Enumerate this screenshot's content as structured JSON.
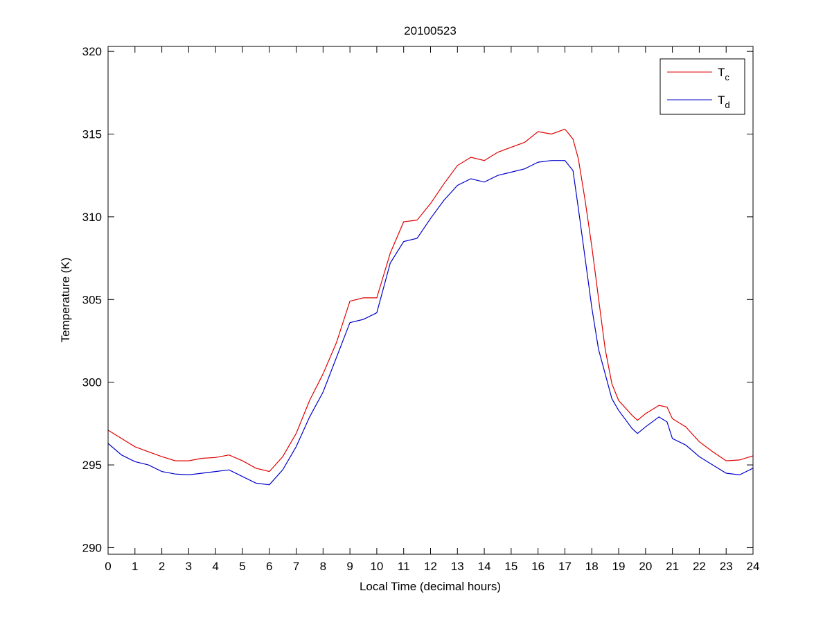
{
  "chart_data": {
    "type": "line",
    "title": "20100523",
    "xlabel": "Local Time (decimal hours)",
    "ylabel": "Temperature (K)",
    "xlim": [
      0,
      24
    ],
    "ylim": [
      289.6,
      320.3
    ],
    "xticks": [
      0,
      1,
      2,
      3,
      4,
      5,
      6,
      7,
      8,
      9,
      10,
      11,
      12,
      13,
      14,
      15,
      16,
      17,
      18,
      19,
      20,
      21,
      22,
      23,
      24
    ],
    "yticks": [
      290,
      295,
      300,
      305,
      310,
      315,
      320
    ],
    "grid": false,
    "legend_position": "top-right",
    "x": [
      0,
      0.5,
      1,
      1.5,
      2,
      2.5,
      3,
      3.5,
      4,
      4.5,
      5,
      5.5,
      6,
      6.5,
      7,
      7.5,
      8,
      8.5,
      9,
      9.5,
      10,
      10.5,
      11,
      11.5,
      12,
      12.5,
      13,
      13.5,
      14,
      14.5,
      15,
      15.5,
      16,
      16.5,
      17,
      17.3,
      17.5,
      17.75,
      18,
      18.25,
      18.5,
      18.75,
      19,
      19.5,
      19.7,
      20,
      20.5,
      20.8,
      21,
      21.5,
      22,
      22.5,
      23,
      23.5,
      24
    ],
    "series": [
      {
        "name": "T",
        "subscript": "c",
        "color": "#e00000",
        "values": [
          297.1,
          296.6,
          296.1,
          295.8,
          295.5,
          295.25,
          295.25,
          295.4,
          295.45,
          295.6,
          295.25,
          294.8,
          294.6,
          295.5,
          296.9,
          298.9,
          300.5,
          302.4,
          304.9,
          305.1,
          305.1,
          307.8,
          309.7,
          309.8,
          310.8,
          312.0,
          313.1,
          313.6,
          313.4,
          313.9,
          314.2,
          314.5,
          315.15,
          315.0,
          315.3,
          314.7,
          313.5,
          311.0,
          308.2,
          305.1,
          302.0,
          299.9,
          298.9,
          298.0,
          297.7,
          298.1,
          298.6,
          298.5,
          297.8,
          297.3,
          296.4,
          295.8,
          295.25,
          295.3,
          295.55
        ]
      },
      {
        "name": "T",
        "subscript": "d",
        "color": "#0000c8",
        "values": [
          296.3,
          295.6,
          295.2,
          295.0,
          294.6,
          294.45,
          294.4,
          294.5,
          294.6,
          294.7,
          294.3,
          293.9,
          293.8,
          294.7,
          296.1,
          297.9,
          299.4,
          301.5,
          303.6,
          303.8,
          304.2,
          307.2,
          308.5,
          308.7,
          309.9,
          311.0,
          311.9,
          312.3,
          312.1,
          312.5,
          312.7,
          312.9,
          313.3,
          313.4,
          313.4,
          312.8,
          310.5,
          307.5,
          304.5,
          302.0,
          300.5,
          299.0,
          298.3,
          297.2,
          296.9,
          297.3,
          297.9,
          297.6,
          296.6,
          296.2,
          295.5,
          295.0,
          294.5,
          294.4,
          294.8
        ]
      }
    ]
  }
}
